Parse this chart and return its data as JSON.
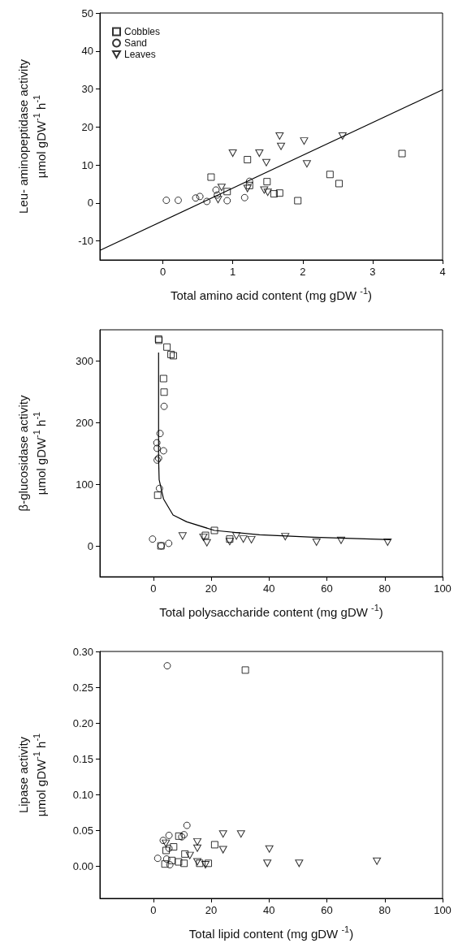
{
  "chart_data": [
    {
      "type": "scatter",
      "xlabel": "Total amino acid content (mg gDW $^{-1}$)",
      "ylabel": "Leu- aminopeptidase activity\nµmol gDW$^{-1}$ h$^{-1}$",
      "xlim": [
        -0.9,
        4
      ],
      "xticks": [
        0,
        1,
        2,
        3,
        4
      ],
      "ylim": [
        -15,
        50
      ],
      "yticks": [
        -10,
        0,
        10,
        20,
        30,
        40,
        50
      ],
      "legend": "top left",
      "series": [
        {
          "name": "Cobbles",
          "color": "#000000",
          "marker": "square",
          "x": [
            0.69,
            1.21,
            0.92,
            1.24,
            1.49,
            1.59,
            1.67,
            1.93,
            2.39,
            2.52,
            3.42
          ],
          "values": [
            6.8,
            11.4,
            3.0,
            4.6,
            5.6,
            2.4,
            2.6,
            0.6,
            7.5,
            5.1,
            13.0
          ]
        },
        {
          "name": "Sand",
          "color": "#000000",
          "marker": "circle",
          "x": [
            0.05,
            0.22,
            0.47,
            0.53,
            0.63,
            0.76,
            0.78,
            0.92,
            1.17,
            1.24
          ],
          "values": [
            0.7,
            0.7,
            1.3,
            1.7,
            0.4,
            3.4,
            2.1,
            0.6,
            1.4,
            5.7
          ]
        },
        {
          "name": "Leaves",
          "color": "#000000",
          "marker": "triangle",
          "x": [
            1.0,
            1.38,
            1.48,
            1.67,
            1.69,
            2.02,
            2.06,
            2.57,
            0.84,
            0.79,
            1.21,
            1.45,
            1.5
          ],
          "values": [
            13.1,
            13.1,
            10.6,
            17.6,
            14.9,
            16.3,
            10.3,
            17.6,
            4.1,
            0.9,
            3.8,
            3.4,
            2.8
          ]
        },
        {
          "type": "line",
          "color": "#000000",
          "marker": "none",
          "x": [
            -0.9,
            4
          ],
          "values": [
            -12.5,
            29.8
          ]
        }
      ]
    },
    {
      "type": "scatter",
      "xlabel": "Total polysaccharide content (mg gDW $^{-1}$)",
      "ylabel": "β-glucosidase activity\nµmol gDW$^{-1}$ h$^{-1}$",
      "xlim": [
        -18.5,
        100
      ],
      "xticks": [
        0,
        20,
        40,
        60,
        80,
        100
      ],
      "ylim": [
        -50,
        350
      ],
      "yticks": [
        0,
        100,
        200,
        300
      ],
      "series": [
        {
          "color": "#000000",
          "marker": "square",
          "x": [
            1.8,
            1.9,
            4.7,
            6.1,
            6.9,
            3.5,
            3.7,
            1.5,
            2.6,
            18.0,
            21.1,
            26.4
          ],
          "values": [
            335,
            333,
            322,
            310,
            308,
            271,
            249,
            82,
            0,
            17,
            25,
            11
          ]
        },
        {
          "color": "#000000",
          "marker": "circle",
          "x": [
            3.7,
            2.3,
            1.2,
            1.3,
            3.5,
            1.8,
            1.3,
            2.1,
            -0.3,
            2.7,
            5.3
          ],
          "values": [
            226,
            182,
            167,
            158,
            154,
            142,
            139,
            93,
            11,
            0,
            4
          ]
        },
        {
          "color": "#000000",
          "marker": "triangle",
          "x": [
            10.1,
            17.3,
            18.5,
            26.4,
            28.7,
            31.1,
            33.9,
            45.6,
            56.4,
            64.9,
            81.0
          ],
          "values": [
            16,
            14,
            5,
            7,
            16,
            11,
            10,
            15,
            6,
            9,
            6
          ]
        },
        {
          "type": "line",
          "color": "#000000",
          "marker": "none",
          "x": [
            1.8,
            1.8,
            2.0,
            3.5,
            6.8,
            11.5,
            21.1,
            36.7,
            55.4,
            82
          ],
          "values": [
            313,
            142,
            107,
            76,
            50,
            39,
            25,
            18,
            14,
            10
          ]
        }
      ]
    },
    {
      "type": "scatter",
      "xlabel": "Total lipid content (mg gDW $^{-1}$)",
      "ylabel": "Lipase activity\nµmol gDW$^{-1}$ h$^{-1}$",
      "xlim": [
        -18.5,
        100
      ],
      "xticks": [
        0,
        20,
        40,
        60,
        80,
        100
      ],
      "ylim": [
        -0.045,
        0.3
      ],
      "yticks": [
        {
          "value": 0,
          "label": "0.00"
        },
        {
          "value": 0.05,
          "label": "0.05"
        },
        {
          "value": 0.1,
          "label": "0.10"
        },
        {
          "value": 0.15,
          "label": "0.15"
        },
        {
          "value": 0.2,
          "label": "0.20"
        },
        {
          "value": 0.25,
          "label": "0.25"
        },
        {
          "value": 0.3,
          "label": "0.30"
        }
      ],
      "series": [
        {
          "color": "#000000",
          "marker": "square",
          "x": [
            31.8,
            8.8,
            7.0,
            4.4,
            10.9,
            21.2,
            6.4,
            4.0,
            8.7,
            10.6,
            16.0,
            19.0
          ],
          "values": [
            0.274,
            0.042,
            0.027,
            0.022,
            0.017,
            0.03,
            0.008,
            0.003,
            0.006,
            0.004,
            0.004,
            0.004
          ]
        },
        {
          "color": "#000000",
          "marker": "circle",
          "x": [
            4.8,
            11.6,
            5.4,
            10.6,
            9.8,
            3.4,
            5.4,
            1.5,
            4.6,
            5.7
          ],
          "values": [
            0.28,
            0.057,
            0.043,
            0.044,
            0.041,
            0.036,
            0.025,
            0.011,
            0.01,
            0.002
          ]
        },
        {
          "color": "#000000",
          "marker": "triangle",
          "x": [
            4.3,
            12.6,
            15.2,
            15.2,
            24.1,
            30.3,
            24.1,
            40.1,
            15.2,
            18.0,
            39.4,
            50.4,
            77.3
          ],
          "values": [
            0.032,
            0.015,
            0.034,
            0.025,
            0.045,
            0.045,
            0.023,
            0.024,
            0.006,
            0.002,
            0.004,
            0.004,
            0.007
          ]
        }
      ]
    }
  ]
}
